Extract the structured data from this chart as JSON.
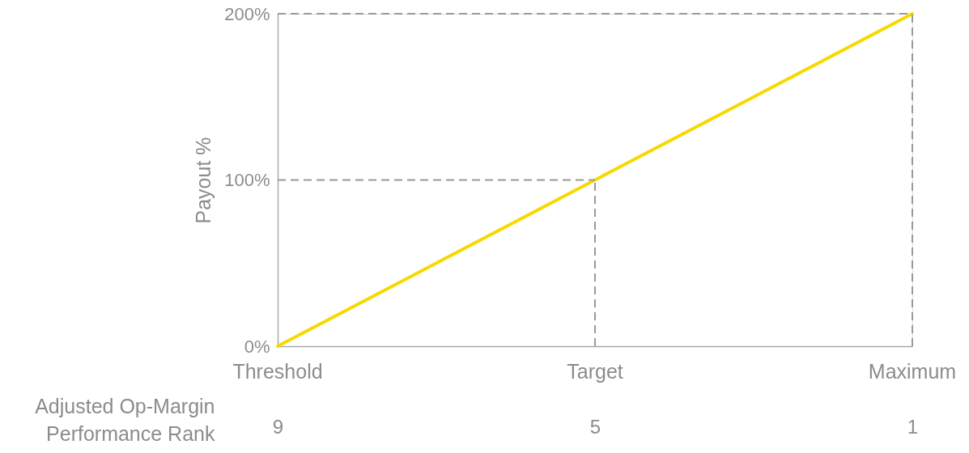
{
  "chart_data": {
    "type": "line",
    "ylabel": "Payout %",
    "xlabel": "Adjusted Op-Margin Performance Rank",
    "x": [
      9,
      5,
      1
    ],
    "series": [
      {
        "color": "#f7d900",
        "values": [
          0,
          100,
          200
        ]
      }
    ],
    "xlim": [
      9,
      1
    ],
    "xticks": [
      9,
      5,
      1
    ],
    "annotations": [
      {
        "text": "Threshold",
        "x": 9,
        "y": 0
      },
      {
        "text": "Target",
        "x": 5,
        "y": 0
      },
      {
        "text": "Maximum",
        "x": 1,
        "y": 0
      }
    ],
    "ylim": [
      0,
      200
    ],
    "yticks": [
      {
        "value": 0,
        "label": "0%"
      },
      {
        "value": 100,
        "label": "100%"
      },
      {
        "value": 200,
        "label": "200%"
      }
    ],
    "ref_lines": [
      {
        "axis": "y",
        "value": 200,
        "color": "#999999",
        "line_style": "dashed"
      },
      {
        "axis": "y",
        "value": 100,
        "color": "#999999",
        "line_style": "dashed"
      },
      {
        "axis": "x",
        "value": 1,
        "color": "#999999",
        "line_style": "dashed"
      },
      {
        "axis": "x",
        "value": 5,
        "color": "#999999",
        "line_style": "dashed"
      }
    ],
    "grid": false,
    "marker": "none",
    "line_style": "solid"
  }
}
